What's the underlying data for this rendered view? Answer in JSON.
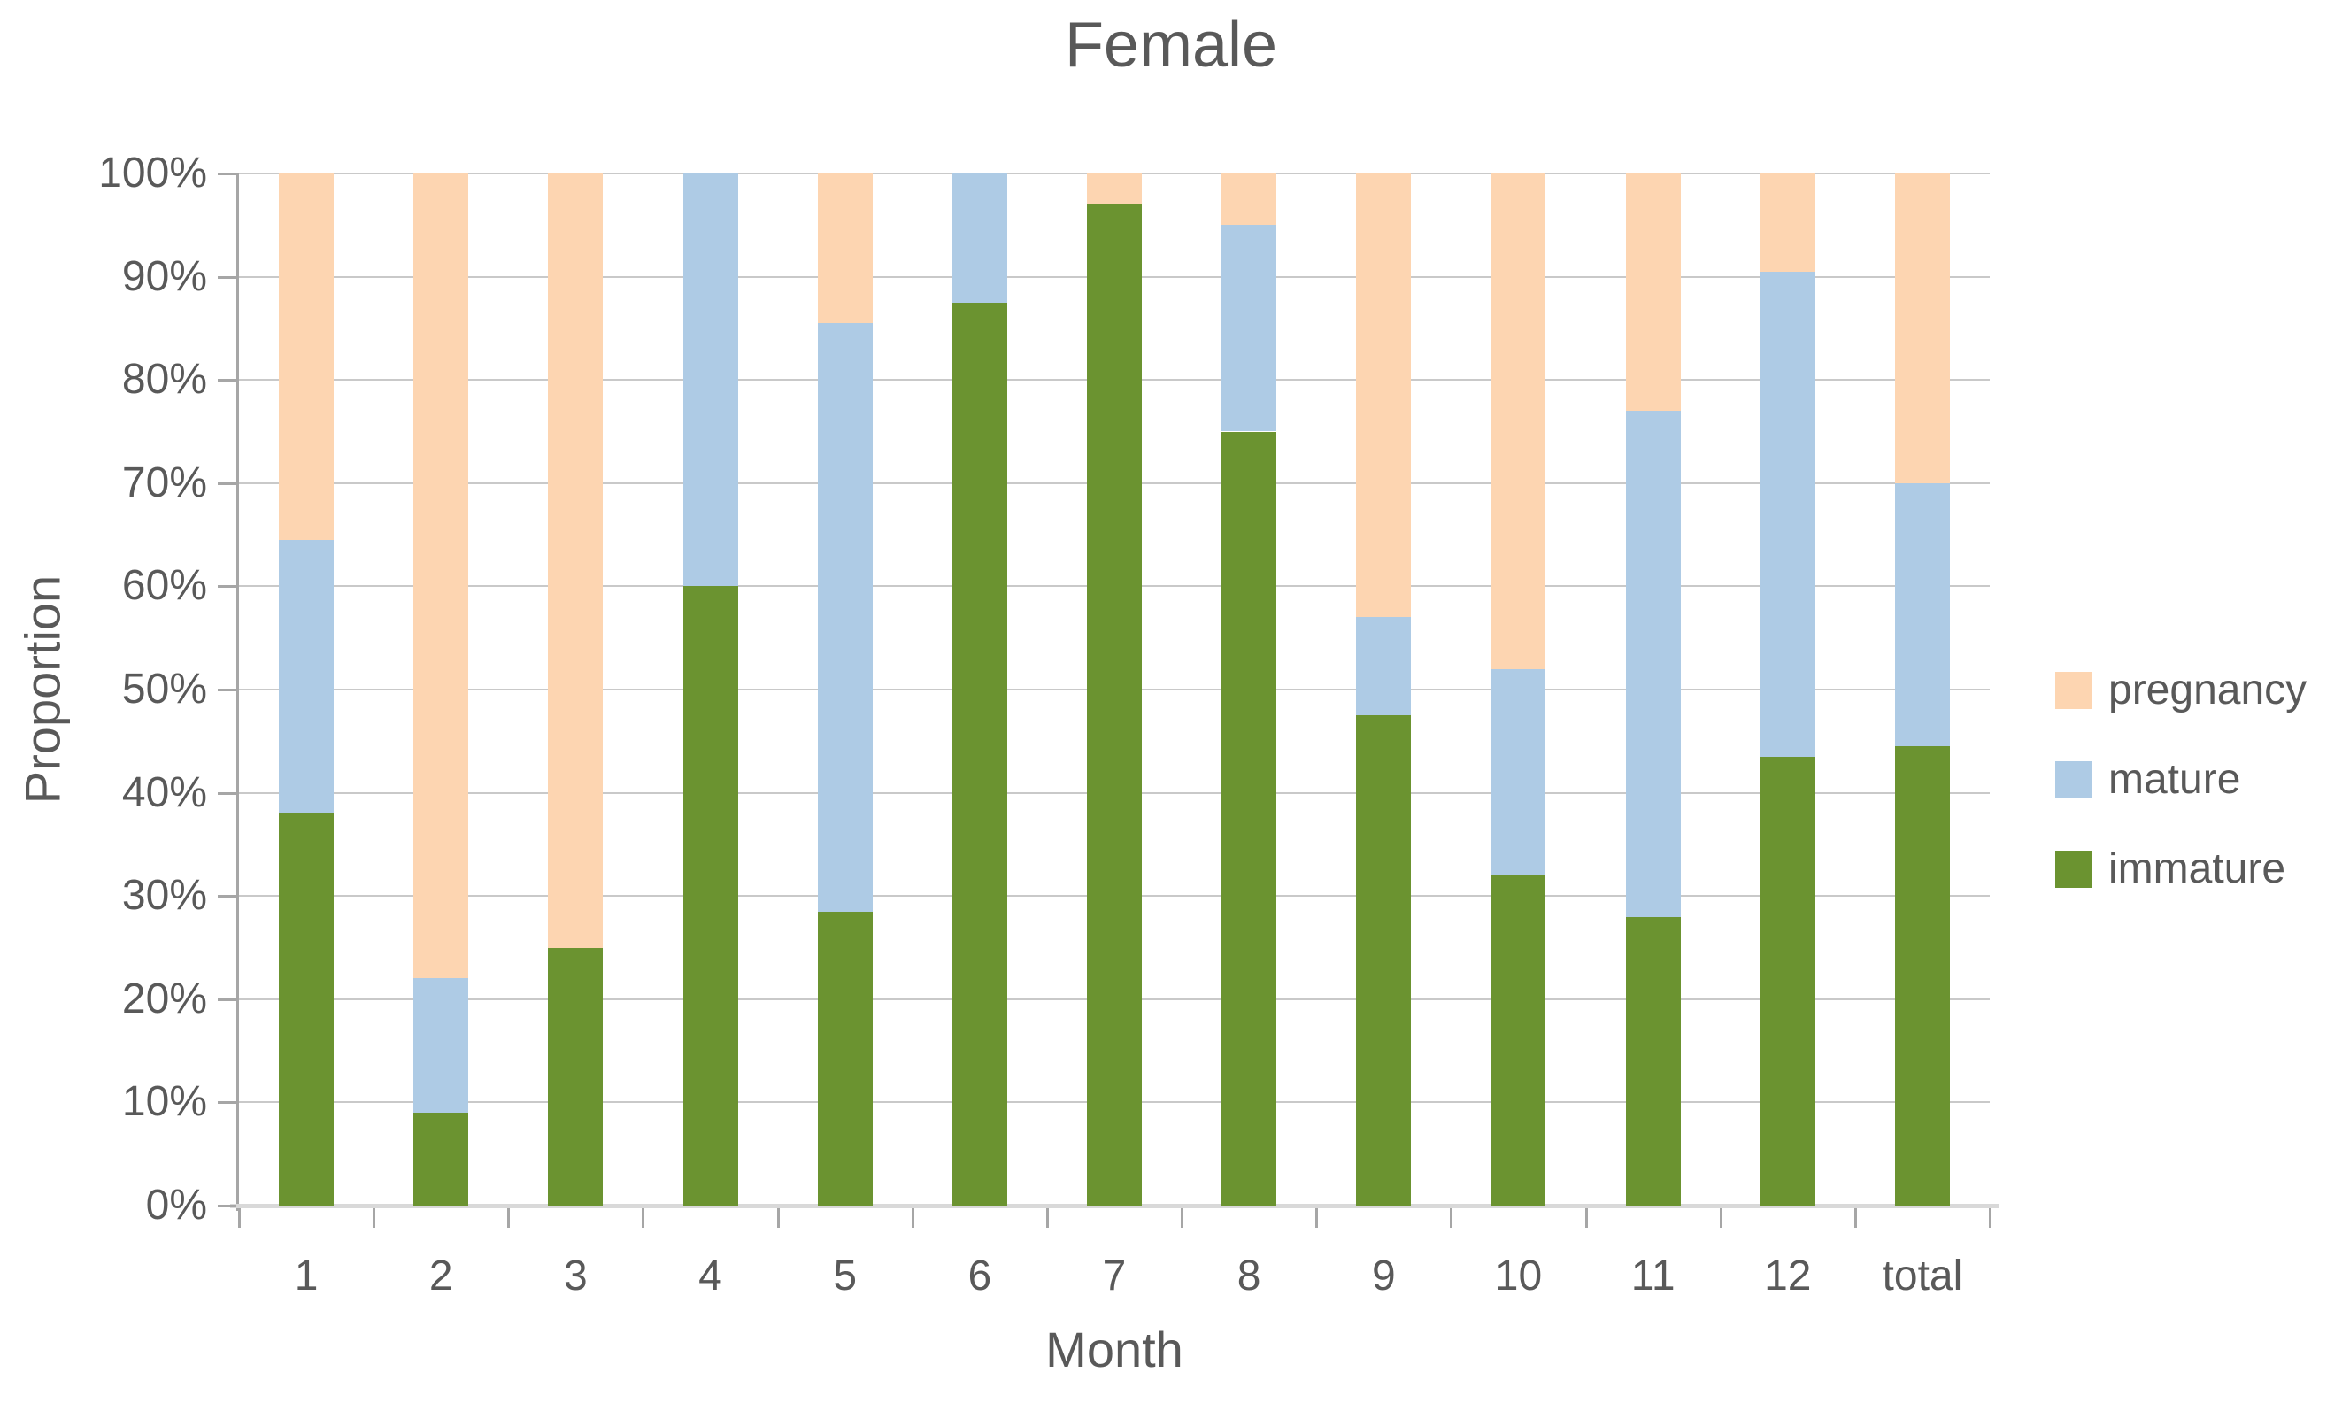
{
  "title": "Female",
  "axes": {
    "y_title": "Proportion",
    "x_title": "Month",
    "y_ticks": [
      "100%",
      "90%",
      "80%",
      "70%",
      "60%",
      "50%",
      "40%",
      "30%",
      "20%",
      "10%",
      "0%"
    ],
    "x_ticks": [
      "1",
      "2",
      "3",
      "4",
      "5",
      "6",
      "7",
      "8",
      "9",
      "10",
      "11",
      "12",
      "total"
    ]
  },
  "legend": [
    {
      "label": "pregnancy",
      "color": "#FDD5B1"
    },
    {
      "label": "mature",
      "color": "#AECBE5"
    },
    {
      "label": "immature",
      "color": "#6B9330"
    }
  ],
  "chart_data": {
    "type": "bar",
    "stacked": true,
    "title": "Female",
    "xlabel": "Month",
    "ylabel": "Proportion",
    "categories": [
      "1",
      "2",
      "3",
      "4",
      "5",
      "6",
      "7",
      "8",
      "9",
      "10",
      "11",
      "12",
      "total"
    ],
    "series": [
      {
        "name": "immature",
        "color": "#6B9330",
        "values": [
          38,
          9,
          25,
          60,
          28.5,
          87.5,
          97,
          75,
          47.5,
          32,
          28,
          43.5,
          44.5
        ]
      },
      {
        "name": "mature",
        "color": "#AECBE5",
        "values": [
          26.5,
          13,
          0,
          40,
          57,
          12.5,
          0,
          20,
          9.5,
          20,
          49,
          47,
          25.5
        ]
      },
      {
        "name": "pregnancy",
        "color": "#FDD5B1",
        "values": [
          35.5,
          78,
          75,
          0,
          14.5,
          0,
          3,
          5,
          43,
          48,
          23,
          9.5,
          30
        ]
      }
    ],
    "ylim": [
      0,
      100
    ],
    "y_tick_step": 10,
    "y_tick_format": "percent",
    "grid": true,
    "legend_position": "right",
    "colors": {
      "grid": "#C9C9C9",
      "axis": "#A6A6A6",
      "baseline": "#D9D9D9",
      "text": "#595959"
    }
  }
}
